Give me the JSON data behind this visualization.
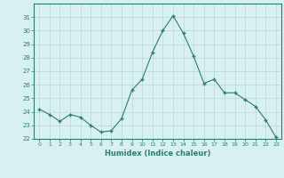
{
  "x": [
    0,
    1,
    2,
    3,
    4,
    5,
    6,
    7,
    8,
    9,
    10,
    11,
    12,
    13,
    14,
    15,
    16,
    17,
    18,
    19,
    20,
    21,
    22,
    23
  ],
  "y": [
    24.2,
    23.8,
    23.3,
    23.8,
    23.6,
    23.0,
    22.5,
    22.6,
    23.5,
    25.6,
    26.4,
    28.4,
    30.0,
    31.1,
    29.8,
    28.1,
    26.1,
    26.4,
    25.4,
    25.4,
    24.9,
    24.4,
    23.4,
    22.1
  ],
  "xlabel": "Humidex (Indice chaleur)",
  "ylim": [
    22,
    32
  ],
  "xlim": [
    -0.5,
    23.5
  ],
  "yticks": [
    22,
    23,
    24,
    25,
    26,
    27,
    28,
    29,
    30,
    31
  ],
  "xticks": [
    0,
    1,
    2,
    3,
    4,
    5,
    6,
    7,
    8,
    9,
    10,
    11,
    12,
    13,
    14,
    15,
    16,
    17,
    18,
    19,
    20,
    21,
    22,
    23
  ],
  "line_color": "#2e7d6e",
  "marker_color": "#2e7d6e",
  "bg_color": "#d8f0f0",
  "grid_color": "#b8d8d8",
  "border_color": "#2e7d6e"
}
